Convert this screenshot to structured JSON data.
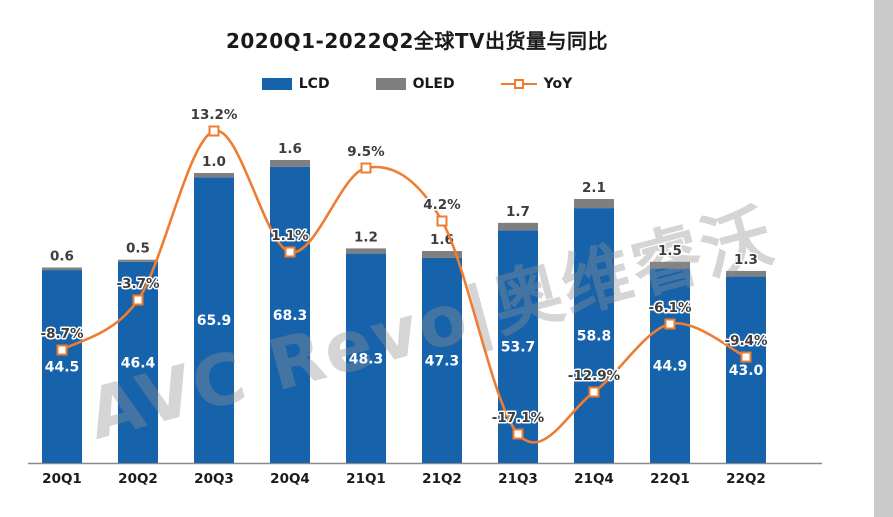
{
  "window": {
    "background": "#ffffff",
    "frame_color": "#c9c9c9"
  },
  "title": "2020Q1-2022Q2全球TV出货量与同比",
  "watermark": "AVC Revo|奥维睿沃",
  "watermark_color": "rgba(145,145,145,0.38)",
  "legend": [
    {
      "label": "LCD",
      "marker": "bar-swatch",
      "color": "#1663ac"
    },
    {
      "label": "OLED",
      "marker": "bar-swatch",
      "color": "#7f7f7f"
    },
    {
      "label": "YoY",
      "marker": "line-with-square",
      "color": "#ee7d31"
    }
  ],
  "chart_data": {
    "type": "bar",
    "combo": "stacked column (LCD + OLED) with smoothed YoY line on secondary percent axis",
    "title": "2020Q1-2022Q2全球TV出货量与同比",
    "categories": [
      "20Q1",
      "20Q2",
      "20Q3",
      "20Q4",
      "21Q1",
      "21Q2",
      "21Q3",
      "21Q4",
      "22Q1",
      "22Q2"
    ],
    "series": [
      {
        "name": "LCD",
        "chart": "bar",
        "stack": true,
        "color": "#1663ac",
        "values": [
          44.5,
          46.4,
          65.9,
          68.3,
          48.3,
          47.3,
          53.7,
          58.8,
          44.9,
          43.0
        ],
        "labels": [
          "44.5",
          "46.4",
          "65.9",
          "68.3",
          "48.3",
          "47.3",
          "53.7",
          "58.8",
          "44.9",
          "43.0"
        ],
        "label_color": "#ffffff"
      },
      {
        "name": "OLED",
        "chart": "bar",
        "stack": true,
        "color": "#7f7f7f",
        "values": [
          0.6,
          0.5,
          1.0,
          1.6,
          1.2,
          1.6,
          1.7,
          2.1,
          1.5,
          1.3
        ],
        "labels": [
          "0.6",
          "0.5",
          "1.0",
          "1.6",
          "1.2",
          "1.6",
          "1.7",
          "2.1",
          "1.5",
          "1.3"
        ],
        "label_color": "#3d3d3d"
      },
      {
        "name": "YoY",
        "chart": "line",
        "axis": "secondary",
        "unit": "%",
        "color": "#ee7d31",
        "values": [
          -8.7,
          -3.7,
          13.2,
          1.1,
          9.5,
          4.2,
          -17.1,
          -12.9,
          -6.1,
          -9.4
        ],
        "labels": [
          "-8.7%",
          "-3.7%",
          "13.2%",
          "1.1%",
          "9.5%",
          "4.2%",
          "-17.1%",
          "-12.9%",
          "-6.1%",
          "-9.4%"
        ],
        "label_color": "#3d3d3d"
      }
    ],
    "xlabel": "",
    "ylabel": "",
    "value_axis_visible": false,
    "bar_ylim": [
      0,
      72
    ],
    "yoy_ylim_pct": [
      -22,
      18
    ],
    "grid": false,
    "legend_position": "top-center",
    "x_axis_label_color": "#1a1a1a",
    "axis_line_color": "#8a8a8a"
  }
}
